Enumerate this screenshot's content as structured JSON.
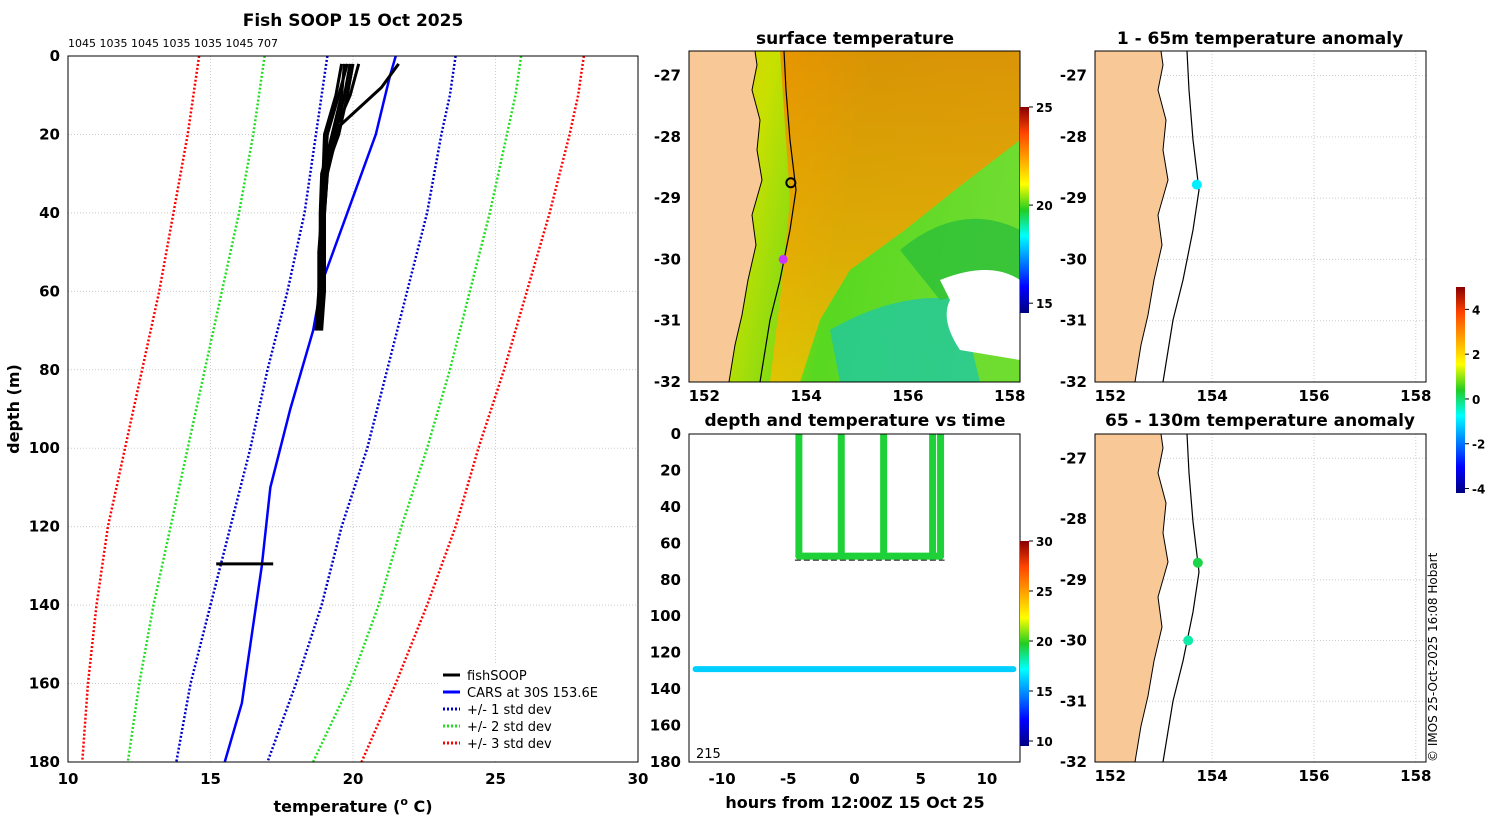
{
  "colors": {
    "land": "#f8c896",
    "cars": "#0000ff",
    "sd1": "#0000cc",
    "sd2": "#22dd22",
    "sd3": "#ff0000",
    "fishsoop": "#000000",
    "grid": "#cccccc"
  },
  "chart_data": [
    {
      "id": "profile",
      "type": "line",
      "title": "Fish SOOP 15 Oct 2025",
      "subtitle": "1045 1035 1045 1035 1035 1045 707",
      "xlabel": "temperature (",
      "xlabel_sup": "o",
      "xlabel_tail": " C)",
      "ylabel": "depth (m)",
      "xlim": [
        10,
        30
      ],
      "ylim": [
        0,
        180
      ],
      "xticks": [
        10,
        15,
        20,
        25,
        30
      ],
      "yticks": [
        0,
        20,
        40,
        60,
        80,
        100,
        120,
        140,
        160,
        180
      ],
      "legend": {
        "position": "bottom-right",
        "entries": [
          {
            "label": "fishSOOP",
            "style": "solid",
            "color": "#000000"
          },
          {
            "label": "CARS at 30S 153.6E",
            "style": "solid",
            "color": "#0000ff"
          },
          {
            "label": "+/- 1 std dev",
            "style": "dotted",
            "color": "#0000cc"
          },
          {
            "label": "+/- 2 std dev",
            "style": "dotted",
            "color": "#22dd22"
          },
          {
            "label": "+/- 3 std dev",
            "style": "dotted",
            "color": "#ff0000"
          }
        ]
      },
      "series": [
        {
          "name": "CARS at 30S 153.6E",
          "depth": [
            0,
            5,
            20,
            40,
            58,
            70,
            90,
            110,
            130,
            150,
            165,
            180
          ],
          "temp": [
            21.5,
            21.3,
            20.8,
            19.8,
            18.9,
            18.6,
            17.8,
            17.1,
            16.8,
            16.4,
            16.1,
            15.5
          ]
        },
        {
          "name": "-1 sd",
          "depth": [
            0,
            10,
            20,
            40,
            60,
            80,
            100,
            120,
            140,
            160,
            180
          ],
          "temp": [
            19.1,
            18.9,
            18.7,
            18.3,
            17.7,
            17.0,
            16.4,
            15.7,
            15.0,
            14.3,
            13.8
          ]
        },
        {
          "name": "+1 sd",
          "depth": [
            0,
            10,
            20,
            40,
            60,
            80,
            100,
            120,
            140,
            160,
            180
          ],
          "temp": [
            23.6,
            23.4,
            23.1,
            22.6,
            21.9,
            21.2,
            20.5,
            19.6,
            18.9,
            18.0,
            17.0
          ]
        },
        {
          "name": "-2 sd",
          "depth": [
            0,
            10,
            20,
            40,
            60,
            80,
            100,
            120,
            140,
            160,
            180
          ],
          "temp": [
            16.9,
            16.7,
            16.5,
            16.0,
            15.4,
            14.8,
            14.2,
            13.6,
            13.0,
            12.5,
            12.1
          ]
        },
        {
          "name": "+2 sd",
          "depth": [
            0,
            10,
            20,
            40,
            60,
            80,
            100,
            120,
            140,
            160,
            180
          ],
          "temp": [
            25.9,
            25.7,
            25.4,
            24.8,
            24.1,
            23.4,
            22.6,
            21.7,
            20.9,
            19.9,
            18.6
          ]
        },
        {
          "name": "-3 sd",
          "depth": [
            0,
            10,
            20,
            40,
            60,
            80,
            100,
            120,
            140,
            160,
            180
          ],
          "temp": [
            14.6,
            14.4,
            14.2,
            13.7,
            13.2,
            12.6,
            12.0,
            11.4,
            11.0,
            10.7,
            10.5
          ]
        },
        {
          "name": "+3 sd",
          "depth": [
            0,
            10,
            20,
            40,
            60,
            80,
            100,
            120,
            140,
            160,
            180
          ],
          "temp": [
            28.1,
            27.9,
            27.6,
            26.9,
            26.1,
            25.3,
            24.4,
            23.6,
            22.6,
            21.5,
            20.3
          ]
        },
        {
          "name": "fishSOOP",
          "casts": [
            {
              "depth": [
                2,
                10,
                20,
                30,
                40,
                50,
                60,
                70
              ],
              "temp": [
                20.2,
                19.9,
                19.3,
                19.1,
                19.0,
                19.0,
                19.0,
                18.9
              ]
            },
            {
              "depth": [
                2,
                10,
                20,
                30,
                40,
                50,
                60,
                68
              ],
              "temp": [
                19.8,
                19.5,
                19.1,
                19.0,
                18.95,
                18.9,
                18.9,
                18.85
              ]
            },
            {
              "depth": [
                2,
                10,
                22,
                30,
                40,
                50,
                60,
                70
              ],
              "temp": [
                19.7,
                19.6,
                19.2,
                18.9,
                18.85,
                18.85,
                18.8,
                18.7
              ]
            },
            {
              "depth": [
                2,
                10,
                20,
                30,
                40,
                50,
                62,
                69
              ],
              "temp": [
                20.0,
                19.8,
                19.5,
                19.0,
                18.9,
                18.9,
                18.85,
                18.75
              ]
            },
            {
              "depth": [
                2,
                8,
                18,
                30,
                40,
                50,
                60,
                70
              ],
              "temp": [
                21.6,
                21.0,
                19.5,
                19.1,
                19.0,
                18.95,
                18.9,
                18.85
              ]
            },
            {
              "depth": [
                2,
                10,
                20,
                30,
                40,
                50,
                60,
                67
              ],
              "temp": [
                19.6,
                19.4,
                19.0,
                18.95,
                18.9,
                18.8,
                18.8,
                18.75
              ]
            },
            {
              "depth": [
                2,
                10,
                22,
                30,
                40,
                50,
                60,
                70
              ],
              "temp": [
                19.9,
                19.7,
                19.3,
                19.0,
                18.95,
                18.9,
                18.85,
                18.8
              ]
            },
            {
              "depth": [
                129.5,
                129.5,
                129.5
              ],
              "temp": [
                15.2,
                16.2,
                17.2
              ]
            }
          ]
        }
      ]
    },
    {
      "id": "sst_map",
      "type": "heatmap",
      "title": "surface temperature",
      "xlim": [
        151.7,
        158.2
      ],
      "ylim": [
        -32,
        -26.6
      ],
      "xticks": [
        152,
        154,
        156,
        158
      ],
      "yticks": [
        -27,
        -28,
        -29,
        -30,
        -31,
        -32
      ],
      "colorbar": {
        "min": 14.5,
        "max": 25,
        "ticks": [
          15,
          20,
          25
        ]
      },
      "markers": [
        {
          "name": "vessel position",
          "lon": 153.7,
          "lat": -28.75,
          "shape": "ring"
        },
        {
          "name": "CARS location",
          "lon": 153.55,
          "lat": -30.0,
          "shape": "diamond",
          "color": "#cc33ff"
        }
      ]
    },
    {
      "id": "anom_shallow",
      "type": "scatter",
      "title": "1 - 65m temperature anomaly",
      "xlim": [
        151.7,
        158.2
      ],
      "ylim": [
        -32,
        -26.6
      ],
      "xticks": [
        152,
        154,
        156,
        158
      ],
      "yticks": [
        -27,
        -28,
        -29,
        -30,
        -31,
        -32
      ],
      "points": [
        {
          "lon": 153.7,
          "lat": -28.78,
          "anomaly": -0.9
        }
      ]
    },
    {
      "id": "anom_deep",
      "type": "scatter",
      "title": "65 - 130m temperature anomaly",
      "xlim": [
        151.7,
        158.2
      ],
      "ylim": [
        -32,
        -26.6
      ],
      "xticks": [
        152,
        154,
        156,
        158
      ],
      "yticks": [
        -27,
        -28,
        -29,
        -30,
        -31,
        -32
      ],
      "colorbar": {
        "min": -4.2,
        "max": 5,
        "ticks": [
          4,
          2,
          0,
          -2,
          -4
        ]
      },
      "points": [
        {
          "lon": 153.72,
          "lat": -28.72,
          "anomaly": 0.2
        },
        {
          "lon": 153.53,
          "lat": -30.0,
          "anomaly": -0.3
        }
      ]
    },
    {
      "id": "depth_time",
      "type": "scatter",
      "title": "depth and temperature vs time",
      "xlabel": "hours from 12:00Z 15 Oct 25",
      "xlim": [
        -12.5,
        12.5
      ],
      "ylim": [
        0,
        180
      ],
      "xticks": [
        -10,
        -5,
        0,
        5,
        10
      ],
      "yticks": [
        0,
        20,
        40,
        60,
        80,
        100,
        120,
        140,
        160,
        180
      ],
      "annotation": "215",
      "colorbar": {
        "min": 9.5,
        "max": 30,
        "ticks": [
          30,
          25,
          20,
          15,
          10
        ]
      },
      "series": [
        {
          "name": "casts",
          "temp_c": 19.5,
          "hours": [
            -4.2,
            -1.0,
            2.2,
            5.9,
            6.5
          ],
          "bottom_depth": 67
        },
        {
          "name": "deep gear",
          "temp_c": 16.2,
          "depth": 129,
          "hours": [
            -12,
            12
          ]
        }
      ]
    }
  ],
  "credit": "© IMOS 25-Oct-2025 16:08 Hobart"
}
